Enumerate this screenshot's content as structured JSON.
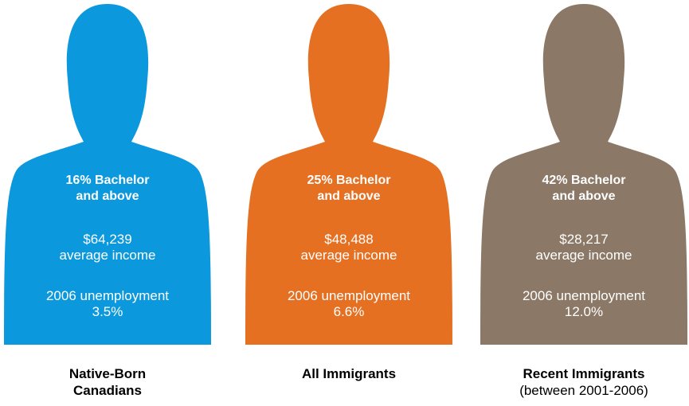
{
  "figures": [
    {
      "color": "#0c98dc",
      "education": [
        "16% Bachelor",
        "and above"
      ],
      "income": [
        "$64,239",
        "average income"
      ],
      "unemployment": [
        "2006 unemployment",
        "3.5%"
      ],
      "caption_title": [
        "Native-Born",
        "Canadians"
      ],
      "caption_sub": ""
    },
    {
      "color": "#e57022",
      "education": [
        "25% Bachelor",
        "and above"
      ],
      "income": [
        "$48,488",
        "average income"
      ],
      "unemployment": [
        "2006 unemployment",
        "6.6%"
      ],
      "caption_title": [
        "All Immigrants"
      ],
      "caption_sub": ""
    },
    {
      "color": "#8b7866",
      "education": [
        "42% Bachelor",
        "and above"
      ],
      "income": [
        "$28,217",
        "average income"
      ],
      "unemployment": [
        "2006 unemployment",
        "12.0%"
      ],
      "caption_title": [
        "Recent Immigrants"
      ],
      "caption_sub": "(between 2001-2006)"
    }
  ]
}
